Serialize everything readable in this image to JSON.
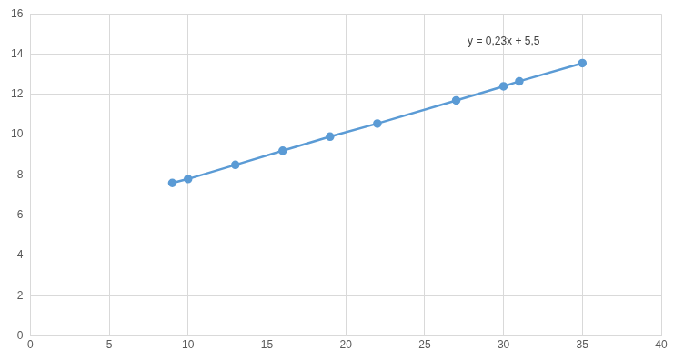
{
  "chart_data": {
    "type": "line",
    "annotation": "y = 0,23x + 5,5",
    "x": [
      9,
      10,
      13,
      16,
      19,
      22,
      27,
      30,
      31,
      35
    ],
    "values": [
      7.6,
      7.8,
      8.5,
      9.2,
      9.9,
      10.55,
      11.7,
      12.4,
      12.65,
      13.55
    ],
    "color": "#5b9bd5",
    "marker": "circle",
    "line_style": "solid",
    "xlim": [
      0,
      40
    ],
    "xticks": [
      0,
      5,
      10,
      15,
      20,
      25,
      30,
      35,
      40
    ],
    "ylim": [
      0,
      16
    ],
    "yticks": [
      0,
      2,
      4,
      6,
      8,
      10,
      12,
      14,
      16
    ],
    "grid": true
  }
}
